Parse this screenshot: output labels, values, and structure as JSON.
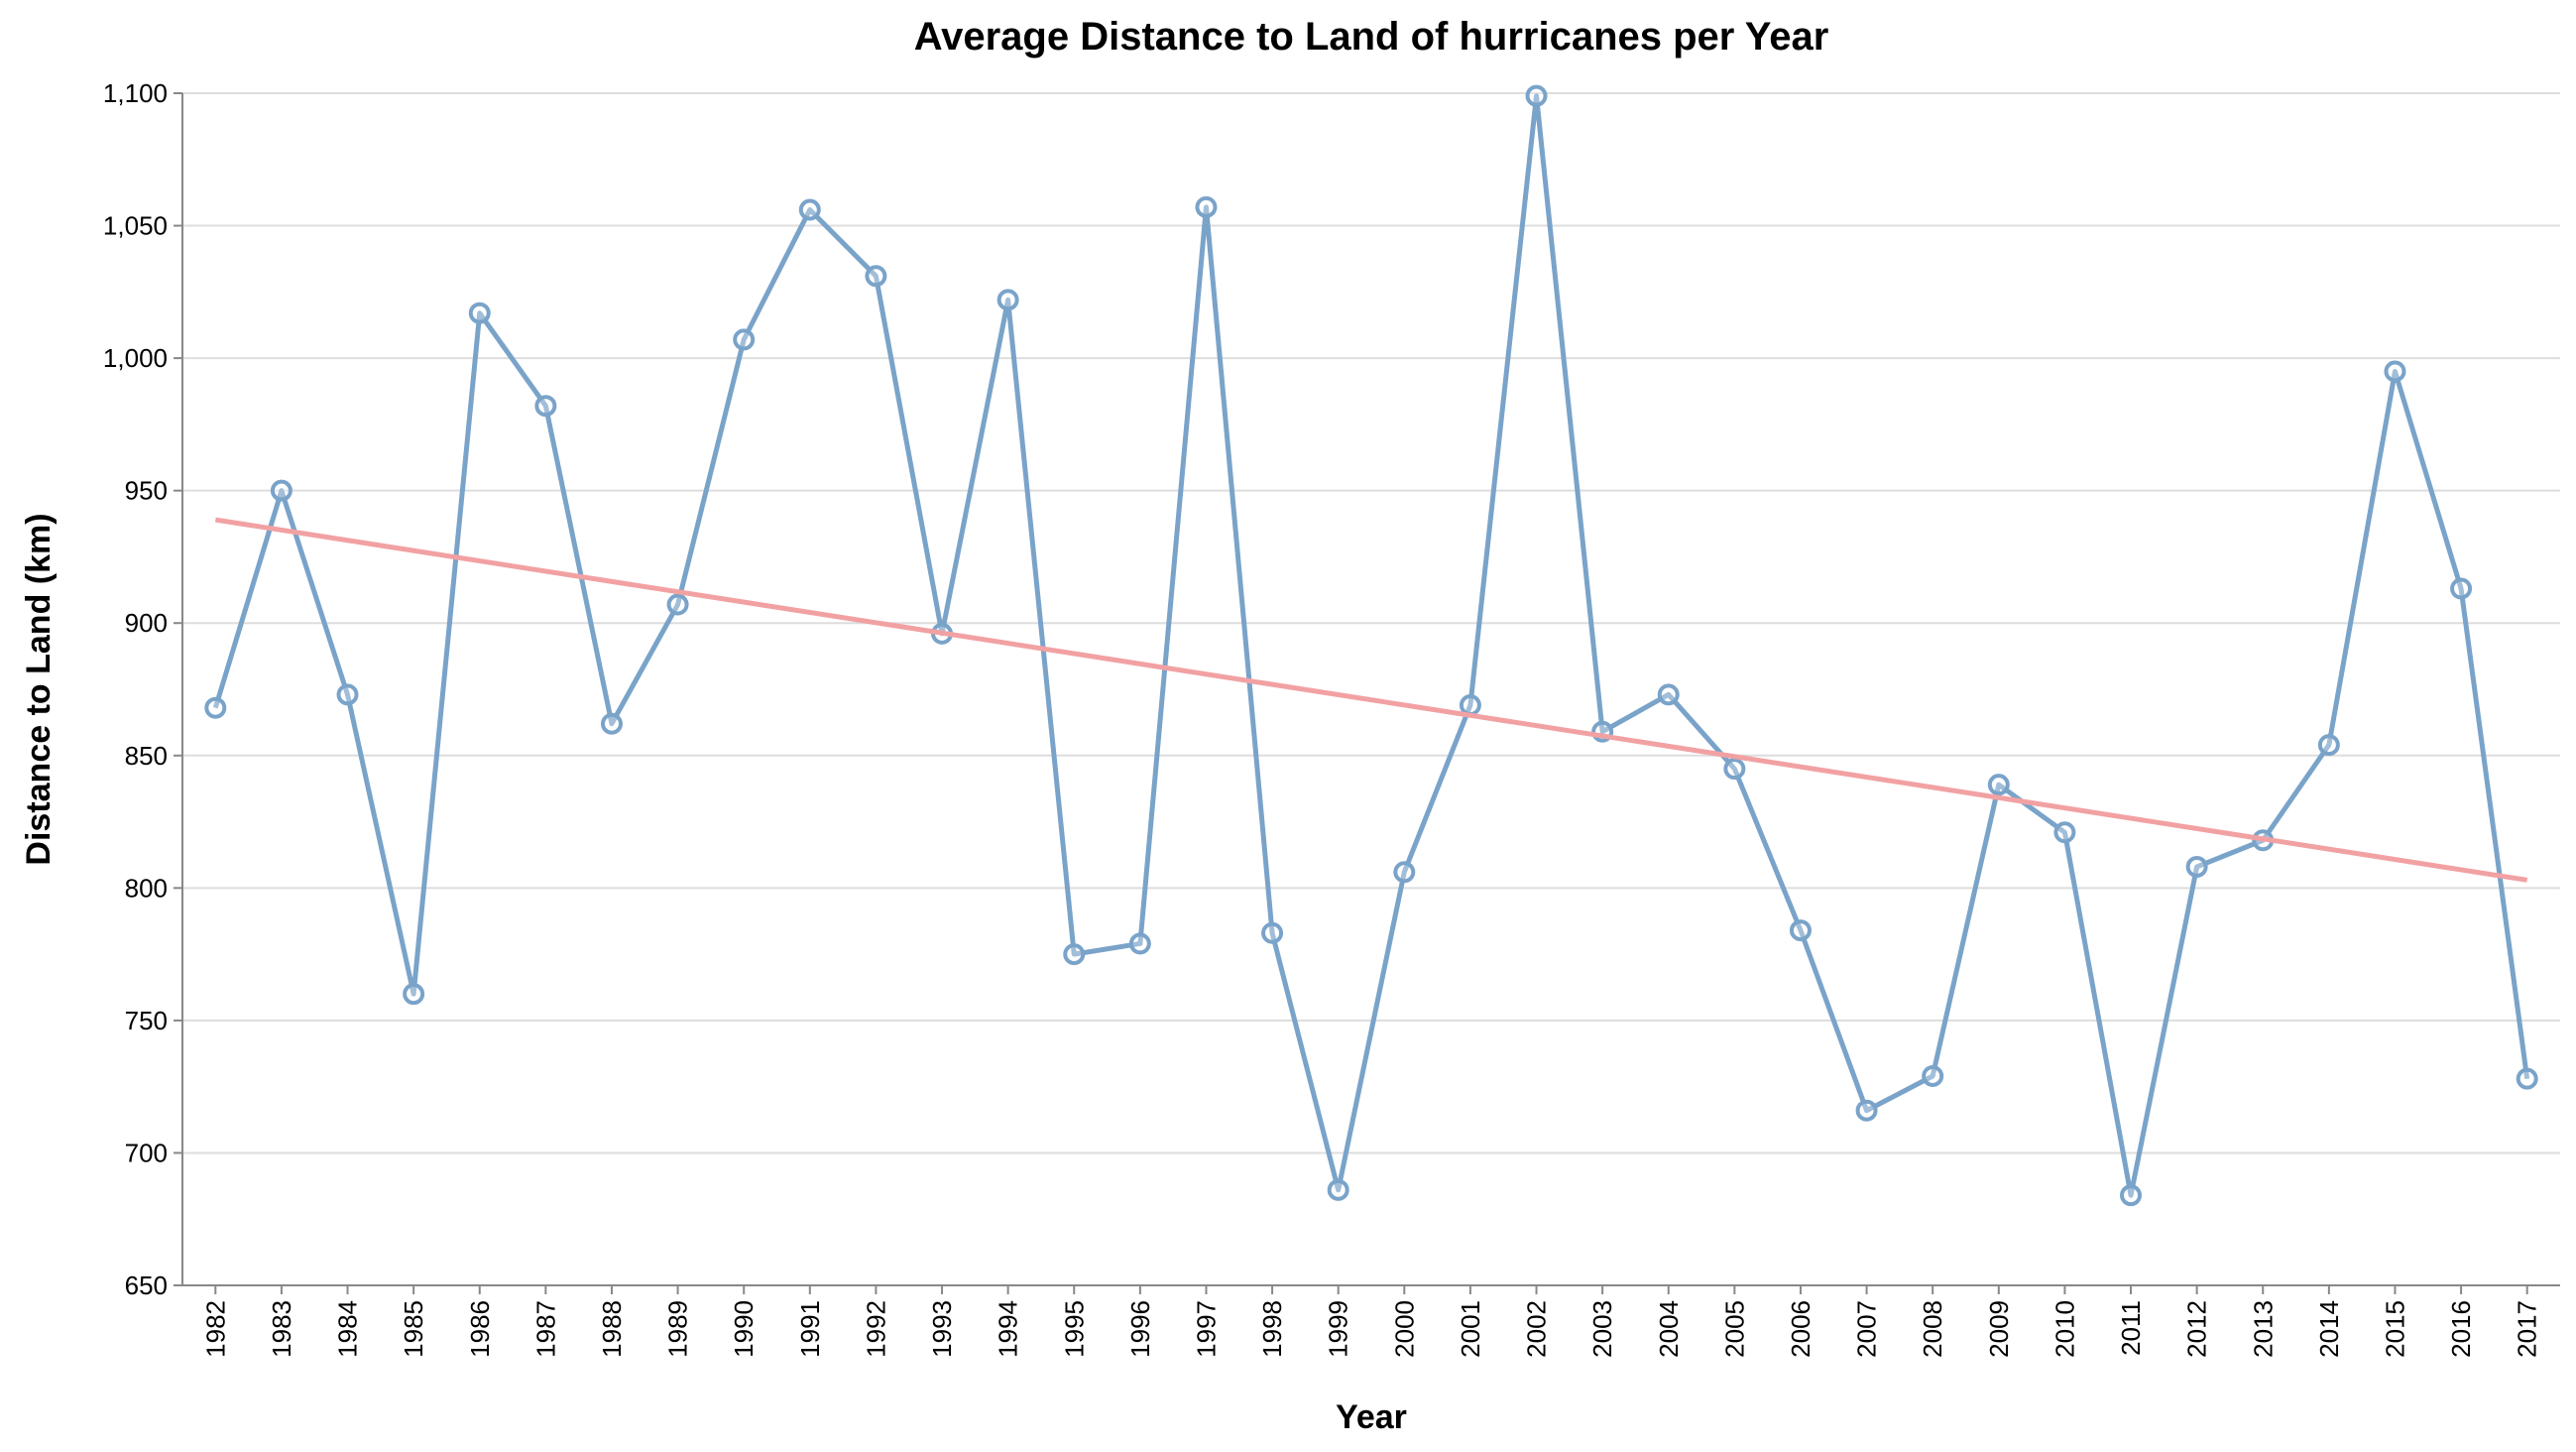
{
  "chart_data": {
    "type": "line",
    "title": "Average Distance to Land of hurricanes per Year",
    "x_label": "Year",
    "y_label": "Distance to Land (km)",
    "categories": [
      "1982",
      "1983",
      "1984",
      "1985",
      "1986",
      "1987",
      "1988",
      "1989",
      "1990",
      "1991",
      "1992",
      "1993",
      "1994",
      "1995",
      "1996",
      "1997",
      "1998",
      "1999",
      "2000",
      "2001",
      "2002",
      "2003",
      "2004",
      "2005",
      "2006",
      "2007",
      "2008",
      "2009",
      "2010",
      "2011",
      "2012",
      "2013",
      "2014",
      "2015",
      "2016",
      "2017"
    ],
    "series": [
      {
        "color": "#7aa3c9",
        "values": [
          868,
          950,
          873,
          760,
          1017,
          982,
          862,
          907,
          1007,
          1056,
          1031,
          896,
          1022,
          775,
          779,
          1057,
          783,
          686,
          806,
          869,
          1099,
          859,
          873,
          845,
          784,
          716,
          729,
          839,
          821,
          684,
          808,
          818,
          854,
          995,
          913,
          728
        ]
      }
    ],
    "trend": {
      "color": "#f2a1a3",
      "values": [
        939,
        803
      ]
    },
    "ylim": [
      650,
      1100
    ],
    "yticks": [
      650,
      700,
      750,
      800,
      850,
      900,
      950,
      {
        "value": 1000,
        "label": "1,000"
      },
      {
        "value": 1050,
        "label": "1,050"
      },
      {
        "value": 1100,
        "label": "1,100"
      }
    ],
    "grid": true
  }
}
